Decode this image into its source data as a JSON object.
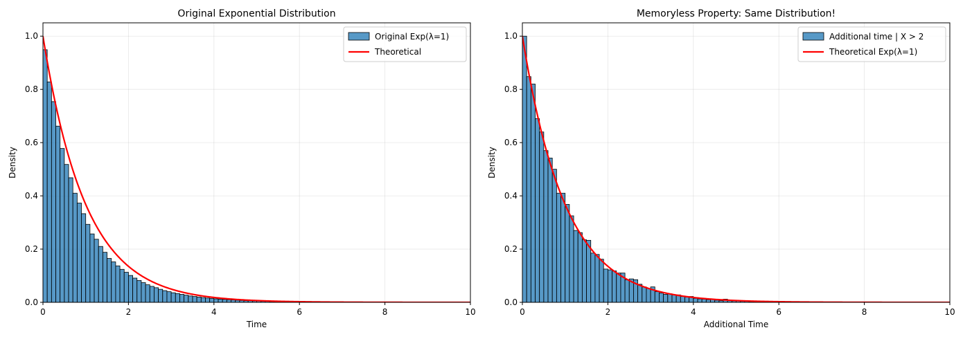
{
  "chart_data": [
    {
      "type": "bar",
      "title": "Original Exponential Distribution",
      "xlabel": "Time",
      "ylabel": "Density",
      "xlim": [
        0,
        10
      ],
      "ylim": [
        0,
        1.05
      ],
      "xticks": [
        "0",
        "2",
        "4",
        "6",
        "8",
        "10"
      ],
      "yticks": [
        "0.0",
        "0.2",
        "0.4",
        "0.6",
        "0.8",
        "1.0"
      ],
      "grid": true,
      "legend_position": "top-right",
      "histogram": {
        "name": "Original Exp(λ=1)",
        "color": "#1f77b4",
        "bin_width": 0.1,
        "x_start": 0,
        "values": [
          0.949,
          0.828,
          0.754,
          0.662,
          0.578,
          0.518,
          0.468,
          0.41,
          0.373,
          0.333,
          0.293,
          0.257,
          0.237,
          0.21,
          0.188,
          0.165,
          0.152,
          0.137,
          0.124,
          0.113,
          0.101,
          0.091,
          0.082,
          0.074,
          0.066,
          0.06,
          0.055,
          0.049,
          0.044,
          0.04,
          0.036,
          0.033,
          0.03,
          0.027,
          0.024,
          0.022,
          0.02,
          0.018,
          0.016,
          0.015,
          0.013,
          0.012,
          0.011,
          0.01,
          0.009,
          0.008,
          0.007,
          0.006,
          0.006,
          0.005,
          0.005,
          0.004,
          0.004,
          0.003,
          0.003,
          0.003,
          0.002,
          0.002,
          0.002,
          0.002,
          0.002,
          0.001,
          0.001,
          0.001,
          0.001,
          0.001,
          0.001,
          0.001,
          0.001,
          0.0005,
          0.0005,
          0.0005,
          0.0004,
          0.0004,
          0.0003,
          0.0003,
          0.0003,
          0.0002,
          0.0002,
          0.0002
        ]
      },
      "curve": {
        "name": "Theoretical",
        "color": "#ff0000",
        "lambda": 1
      }
    },
    {
      "type": "bar",
      "title": "Memoryless Property: Same Distribution!",
      "xlabel": "Additional Time",
      "ylabel": "Density",
      "xlim": [
        0,
        10
      ],
      "ylim": [
        0,
        1.05
      ],
      "xticks": [
        "0",
        "2",
        "4",
        "6",
        "8",
        "10"
      ],
      "yticks": [
        "0.0",
        "0.2",
        "0.4",
        "0.6",
        "0.8",
        "1.0"
      ],
      "grid": true,
      "legend_position": "top-right",
      "histogram": {
        "name": "Additional time | X > 2",
        "color": "#1f77b4",
        "bin_width": 0.1,
        "x_start": 0,
        "values": [
          1.0,
          0.848,
          0.82,
          0.69,
          0.64,
          0.57,
          0.542,
          0.5,
          0.41,
          0.41,
          0.368,
          0.325,
          0.27,
          0.262,
          0.235,
          0.233,
          0.185,
          0.18,
          0.162,
          0.125,
          0.122,
          0.118,
          0.11,
          0.11,
          0.085,
          0.088,
          0.085,
          0.068,
          0.058,
          0.052,
          0.058,
          0.04,
          0.035,
          0.03,
          0.032,
          0.028,
          0.028,
          0.022,
          0.02,
          0.022,
          0.015,
          0.013,
          0.012,
          0.01,
          0.012,
          0.008,
          0.006,
          0.012,
          0.006,
          0.005,
          0.005,
          0.004,
          0.004,
          0.003,
          0.003,
          0.002,
          0.002,
          0.002,
          0.002,
          0.002
        ]
      },
      "curve": {
        "name": "Theoretical Exp(λ=1)",
        "color": "#ff0000",
        "lambda": 1
      }
    }
  ]
}
